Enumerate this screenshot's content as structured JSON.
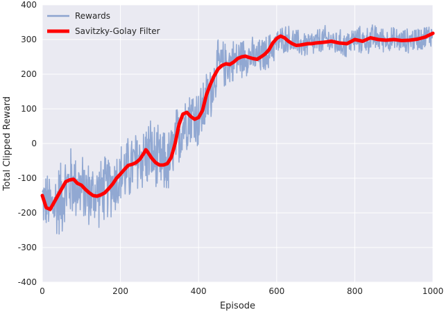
{
  "chart_data": {
    "type": "line",
    "xlabel": "Episode",
    "ylabel": "Total Clipped Reward",
    "xlim": [
      0,
      1000
    ],
    "ylim": [
      -400,
      400
    ],
    "xticks": [
      0,
      200,
      400,
      600,
      800,
      1000
    ],
    "yticks": [
      -400,
      -300,
      -200,
      -100,
      0,
      100,
      200,
      300,
      400
    ],
    "grid": true,
    "legend_position": "top-left",
    "background": "#EAEAF2",
    "series": [
      {
        "name": "Rewards",
        "color": "#7B97C9",
        "style": "noisy raw episode rewards",
        "x": [
          0,
          25,
          50,
          75,
          100,
          125,
          150,
          175,
          200,
          225,
          250,
          275,
          300,
          325,
          350,
          375,
          400,
          425,
          450,
          475,
          500,
          525,
          550,
          575,
          600,
          625,
          650,
          675,
          700,
          725,
          750,
          775,
          800,
          825,
          850,
          875,
          900,
          925,
          950,
          975,
          1000
        ],
        "values": [
          -160,
          -185,
          -150,
          -110,
          -130,
          -150,
          -140,
          -120,
          -95,
          -70,
          -45,
          -25,
          -60,
          -55,
          30,
          85,
          75,
          130,
          225,
          230,
          245,
          255,
          245,
          260,
          290,
          305,
          290,
          285,
          290,
          300,
          290,
          285,
          300,
          295,
          305,
          300,
          300,
          295,
          300,
          305,
          315
        ],
        "noise_amplitude": [
          90,
          110,
          130,
          120,
          110,
          110,
          110,
          105,
          110,
          110,
          110,
          120,
          110,
          110,
          110,
          100,
          110,
          100,
          80,
          75,
          70,
          65,
          60,
          60,
          50,
          45,
          45,
          45,
          45,
          45,
          45,
          45,
          45,
          45,
          45,
          40,
          40,
          40,
          40,
          40,
          40
        ]
      },
      {
        "name": "Savitzky-Golay Filter",
        "color": "#FF0000",
        "x": [
          0,
          10,
          20,
          30,
          40,
          50,
          60,
          70,
          80,
          90,
          100,
          110,
          120,
          130,
          140,
          150,
          160,
          170,
          180,
          190,
          200,
          210,
          220,
          230,
          240,
          250,
          260,
          265,
          270,
          280,
          290,
          300,
          310,
          320,
          330,
          340,
          350,
          360,
          370,
          380,
          390,
          400,
          410,
          420,
          430,
          440,
          450,
          460,
          470,
          480,
          490,
          500,
          510,
          520,
          530,
          540,
          550,
          560,
          570,
          580,
          590,
          600,
          610,
          620,
          630,
          640,
          650,
          660,
          670,
          680,
          690,
          700,
          720,
          740,
          760,
          780,
          800,
          820,
          840,
          860,
          880,
          900,
          920,
          940,
          960,
          980,
          1000
        ],
        "values": [
          -150,
          -185,
          -190,
          -170,
          -150,
          -130,
          -110,
          -105,
          -103,
          -115,
          -120,
          -132,
          -142,
          -150,
          -152,
          -148,
          -142,
          -130,
          -117,
          -100,
          -88,
          -75,
          -63,
          -60,
          -55,
          -45,
          -28,
          -18,
          -25,
          -42,
          -55,
          -62,
          -62,
          -58,
          -40,
          0,
          55,
          85,
          90,
          78,
          70,
          75,
          95,
          140,
          170,
          195,
          215,
          225,
          230,
          228,
          235,
          245,
          250,
          252,
          248,
          245,
          243,
          250,
          258,
          270,
          290,
          303,
          310,
          305,
          295,
          288,
          283,
          284,
          286,
          288,
          288,
          290,
          292,
          295,
          290,
          288,
          300,
          295,
          305,
          300,
          298,
          300,
          297,
          298,
          301,
          307,
          318
        ]
      }
    ]
  }
}
